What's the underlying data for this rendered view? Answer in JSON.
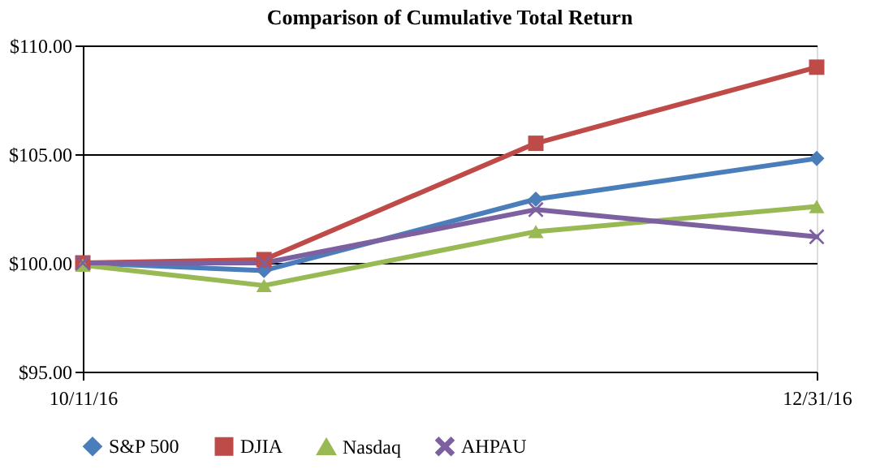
{
  "chart_data": {
    "type": "line",
    "title": "Comparison of Cumulative Total Return",
    "x": [
      "2016-10-11",
      "2016-10-31",
      "2016-11-30",
      "2016-12-31"
    ],
    "xlim": [
      "2016-10-11",
      "2016-12-31"
    ],
    "xticks": [
      {
        "value": "2016-10-11",
        "label": "10/11/16"
      },
      {
        "value": "2016-12-31",
        "label": "12/31/16"
      }
    ],
    "ylim": [
      95,
      110
    ],
    "yticks": [
      {
        "value": 95,
        "label": "$95.00"
      },
      {
        "value": 100,
        "label": "$100.00"
      },
      {
        "value": 105,
        "label": "$105.00"
      },
      {
        "value": 110,
        "label": "$110.00"
      }
    ],
    "grid": "y",
    "legend": "bottom",
    "line_style": "solid",
    "series": [
      {
        "name": "S&P 500",
        "color": "#4a7ebb",
        "marker": "diamond",
        "values": [
          100.0,
          99.65,
          102.93,
          104.8
        ]
      },
      {
        "name": "DJIA",
        "color": "#be4b48",
        "marker": "square",
        "values": [
          100.0,
          100.15,
          105.5,
          109.0
        ]
      },
      {
        "name": "Nasdaq",
        "color": "#98b954",
        "marker": "triangle",
        "values": [
          99.9,
          98.96,
          101.44,
          102.59
        ]
      },
      {
        "name": "AHPAU",
        "color": "#7d60a0",
        "marker": "cross",
        "values": [
          100.0,
          100.0,
          102.45,
          101.2
        ]
      }
    ]
  }
}
